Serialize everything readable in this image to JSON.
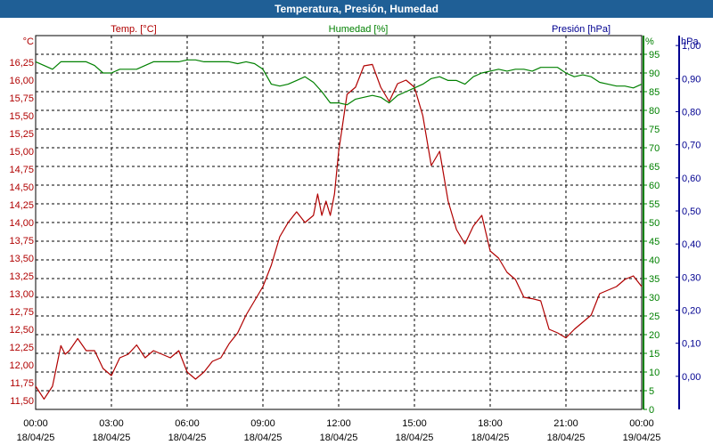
{
  "window": {
    "title": "Temperatura, Presión, Humedad"
  },
  "colors": {
    "temperature": "#b00000",
    "humidity": "#008000",
    "pressure": "#000090",
    "grid": "#000000",
    "titlebar": "#1f5f96"
  },
  "chart_data": {
    "type": "line",
    "title": "Temperatura, Presión, Humedad",
    "grid": true,
    "x_ticks": [
      {
        "time": "00:00",
        "date": "18/04/25"
      },
      {
        "time": "03:00",
        "date": "18/04/25"
      },
      {
        "time": "06:00",
        "date": "18/04/25"
      },
      {
        "time": "09:00",
        "date": "18/04/25"
      },
      {
        "time": "12:00",
        "date": "18/04/25"
      },
      {
        "time": "15:00",
        "date": "18/04/25"
      },
      {
        "time": "18:00",
        "date": "18/04/25"
      },
      {
        "time": "21:00",
        "date": "18/04/25"
      },
      {
        "time": "00:00",
        "date": "19/04/25"
      }
    ],
    "axes": {
      "temperature": {
        "label": "Temp. [°C]",
        "unit": "°C",
        "range": [
          11.375,
          16.625
        ],
        "ticks": [
          "11,50",
          "11,75",
          "12,00",
          "12,25",
          "12,50",
          "12,75",
          "13,00",
          "13,25",
          "13,50",
          "13,75",
          "14,00",
          "14,25",
          "14,50",
          "14,75",
          "15,00",
          "15,25",
          "15,50",
          "15,75",
          "16,00",
          "16,25"
        ]
      },
      "humidity": {
        "label": "Humedad [%]",
        "unit": "%",
        "range": [
          0,
          100
        ],
        "ticks": [
          "0",
          "5",
          "10",
          "15",
          "20",
          "25",
          "30",
          "35",
          "40",
          "45",
          "50",
          "55",
          "60",
          "65",
          "70",
          "75",
          "80",
          "85",
          "90",
          "95"
        ]
      },
      "pressure": {
        "label": "Presión [hPa]",
        "unit": "hPa",
        "range": [
          -0.1,
          1.03
        ],
        "ticks": [
          "0,00",
          "0,10",
          "0,20",
          "0,30",
          "0,40",
          "0,50",
          "0,60",
          "0,70",
          "0,80",
          "0,90",
          "1,00"
        ]
      }
    },
    "series": [
      {
        "name": "Temp. [°C]",
        "axis": "temperature",
        "color": "#b00000",
        "x": [
          "00:00",
          "00:20",
          "00:40",
          "01:00",
          "01:10",
          "01:20",
          "01:40",
          "02:00",
          "02:20",
          "02:40",
          "03:00",
          "03:20",
          "03:40",
          "04:00",
          "04:20",
          "04:40",
          "05:00",
          "05:20",
          "05:40",
          "06:00",
          "06:20",
          "06:40",
          "07:00",
          "07:20",
          "07:40",
          "08:00",
          "08:20",
          "08:40",
          "09:00",
          "09:20",
          "09:40",
          "10:00",
          "10:20",
          "10:40",
          "11:00",
          "11:10",
          "11:20",
          "11:30",
          "11:40",
          "11:50",
          "12:00",
          "12:20",
          "12:40",
          "13:00",
          "13:20",
          "13:40",
          "14:00",
          "14:20",
          "14:40",
          "15:00",
          "15:20",
          "15:40",
          "16:00",
          "16:20",
          "16:40",
          "17:00",
          "17:20",
          "17:40",
          "18:00",
          "18:20",
          "18:40",
          "19:00",
          "19:20",
          "19:40",
          "20:00",
          "20:20",
          "20:40",
          "21:00",
          "21:20",
          "21:40",
          "22:00",
          "22:20",
          "22:40",
          "23:00",
          "23:20",
          "23:40",
          "24:00"
        ],
        "values": [
          11.7,
          11.52,
          11.7,
          12.27,
          12.15,
          12.2,
          12.37,
          12.2,
          12.2,
          11.95,
          11.85,
          12.1,
          12.15,
          12.28,
          12.1,
          12.2,
          12.15,
          12.1,
          12.2,
          11.9,
          11.8,
          11.9,
          12.05,
          12.1,
          12.3,
          12.45,
          12.7,
          12.9,
          13.1,
          13.4,
          13.8,
          14.0,
          14.15,
          14.0,
          14.1,
          14.4,
          14.1,
          14.3,
          14.1,
          14.4,
          15.0,
          15.8,
          15.9,
          16.2,
          16.22,
          15.9,
          15.7,
          15.95,
          16.0,
          15.9,
          15.5,
          14.8,
          15.0,
          14.3,
          13.9,
          13.7,
          13.95,
          14.1,
          13.6,
          13.5,
          13.3,
          13.2,
          12.95,
          12.93,
          12.9,
          12.5,
          12.45,
          12.38,
          12.5,
          12.6,
          12.7,
          13.0,
          13.05,
          13.1,
          13.2,
          13.25,
          13.1
        ]
      },
      {
        "name": "Humedad [%]",
        "axis": "humidity",
        "color": "#008000",
        "x": [
          "00:00",
          "00:20",
          "00:40",
          "01:00",
          "01:20",
          "01:40",
          "02:00",
          "02:20",
          "02:40",
          "03:00",
          "03:20",
          "03:40",
          "04:00",
          "04:20",
          "04:40",
          "05:00",
          "05:20",
          "05:40",
          "06:00",
          "06:20",
          "06:40",
          "07:00",
          "07:20",
          "07:40",
          "08:00",
          "08:20",
          "08:40",
          "09:00",
          "09:20",
          "09:40",
          "10:00",
          "10:20",
          "10:40",
          "11:00",
          "11:20",
          "11:40",
          "12:00",
          "12:20",
          "12:40",
          "13:00",
          "13:20",
          "13:40",
          "14:00",
          "14:20",
          "14:40",
          "15:00",
          "15:20",
          "15:40",
          "16:00",
          "16:20",
          "16:40",
          "17:00",
          "17:20",
          "17:40",
          "18:00",
          "18:20",
          "18:40",
          "19:00",
          "19:20",
          "19:40",
          "20:00",
          "20:20",
          "20:40",
          "21:00",
          "21:20",
          "21:40",
          "22:00",
          "22:20",
          "22:40",
          "23:00",
          "23:20",
          "23:40",
          "24:00"
        ],
        "values": [
          93,
          92,
          91,
          93,
          93,
          93,
          93,
          92,
          90,
          90,
          91,
          91,
          91,
          92,
          93,
          93,
          93,
          93,
          93.5,
          93.5,
          93,
          93,
          93,
          93,
          92.5,
          93,
          92.5,
          91,
          87,
          86.5,
          87,
          88,
          89,
          87.5,
          85,
          82,
          82,
          81.5,
          83,
          83.5,
          84,
          83.5,
          82,
          84,
          85,
          86,
          87,
          88.5,
          89,
          88,
          88,
          87,
          89,
          90,
          90.5,
          91,
          90.5,
          91,
          91,
          90.5,
          91.5,
          91.5,
          91.5,
          90,
          89,
          89.5,
          89,
          87.5,
          87,
          86.5,
          86.5,
          86,
          87
        ]
      }
    ]
  }
}
